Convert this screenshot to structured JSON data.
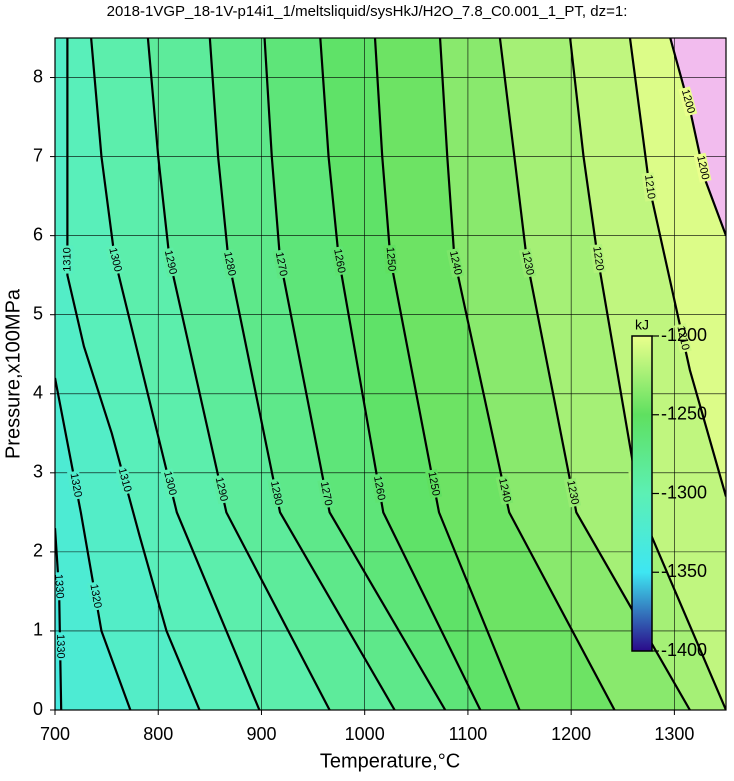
{
  "chart_data": {
    "type": "contour",
    "title": "2018-1VGP_18-1V-p14i1_1/meltsliquid/sysHkJ/H2O_7.8_C0.001_1_PT, dz=1:",
    "x_label": "Temperature,°C",
    "y_label": "Pressure,x100MPa",
    "xlim": [
      700,
      1350
    ],
    "ylim": [
      0,
      8.5
    ],
    "xticks": [
      700,
      800,
      900,
      1000,
      1100,
      1200,
      1300
    ],
    "yticks": [
      0,
      1,
      2,
      3,
      4,
      5,
      6,
      7,
      8
    ],
    "grid": true,
    "line_color": "#000000",
    "colorbar": {
      "label": "kJ",
      "lim": [
        -1400,
        -1200
      ],
      "ticks": [
        -1200,
        -1250,
        -1300,
        -1350,
        -1400
      ],
      "colors": [
        "#2a0a8a",
        "#3ee6f2",
        "#5cf0b4",
        "#5fe060",
        "#eaff8c"
      ],
      "above_color": "#f2bcee"
    },
    "contours": [
      {
        "level": -1330,
        "label": "1330",
        "x": [
          706,
          704,
          700
        ],
        "y": [
          0,
          1.5,
          2.3
        ]
      },
      {
        "level": -1320,
        "label": "1320",
        "x": [
          773,
          745,
          725,
          700
        ],
        "y": [
          0,
          1,
          2.5,
          4.2
        ]
      },
      {
        "level": -1310,
        "label": "1310",
        "x": [
          840,
          808,
          782,
          755,
          728,
          712,
          712
        ],
        "y": [
          0,
          1,
          2.2,
          3.5,
          4.6,
          5.5,
          8.5
        ]
      },
      {
        "level": -1300,
        "label": "1300",
        "x": [
          898,
          818,
          758,
          745,
          735
        ],
        "y": [
          0,
          2.5,
          5.7,
          7,
          8.5
        ]
      },
      {
        "level": -1290,
        "label": "1290",
        "x": [
          966,
          866,
          811,
          800,
          790
        ],
        "y": [
          0,
          2.5,
          5.7,
          7,
          8.5
        ]
      },
      {
        "level": -1280,
        "label": "1280",
        "x": [
          1029,
          918,
          868,
          858,
          850
        ],
        "y": [
          0,
          2.5,
          5.7,
          7,
          8.5
        ]
      },
      {
        "level": -1270,
        "label": "1270",
        "x": [
          1078,
          966,
          918,
          910,
          903
        ],
        "y": [
          0,
          2.5,
          5.7,
          7,
          8.5
        ]
      },
      {
        "level": -1260,
        "label": "1260",
        "x": [
          1112,
          1018,
          975,
          965,
          957
        ],
        "y": [
          0,
          2.5,
          5.7,
          7,
          8.5
        ]
      },
      {
        "level": -1250,
        "label": "1250",
        "x": [
          1150,
          1072,
          1025,
          1017,
          1010
        ],
        "y": [
          0,
          2.5,
          5.7,
          7,
          8.5
        ]
      },
      {
        "level": -1240,
        "label": "1240",
        "x": [
          1242,
          1140,
          1087,
          1080,
          1073
        ],
        "y": [
          0,
          2.5,
          5.7,
          7,
          8.5
        ]
      },
      {
        "level": -1230,
        "label": "1230",
        "x": [
          1315,
          1205,
          1157,
          1145,
          1131
        ],
        "y": [
          0,
          2.5,
          5.7,
          7,
          8.5
        ]
      },
      {
        "level": -1220,
        "label": "1220",
        "x": [
          1350,
          1268,
          1226,
          1212,
          1199
        ],
        "y": [
          0,
          2.5,
          5.7,
          7,
          8.5
        ]
      },
      {
        "level": -1210,
        "label": "1210",
        "x": [
          1350,
          1315,
          1276,
          1257
        ],
        "y": [
          2.7,
          4.3,
          6.6,
          8.5
        ]
      },
      {
        "level": -1200,
        "label": "1200",
        "x": [
          1350,
          1330,
          1315,
          1296
        ],
        "y": [
          6.0,
          6.7,
          7.6,
          8.5
        ]
      }
    ]
  }
}
